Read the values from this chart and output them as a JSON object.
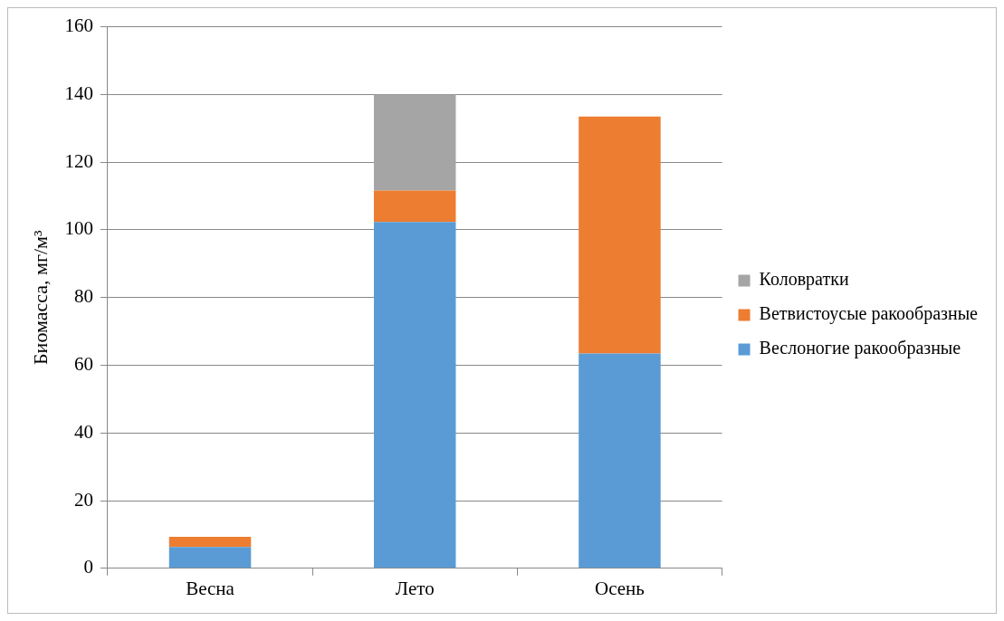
{
  "chart_data": {
    "type": "bar",
    "stacked": true,
    "ylabel": "Биомасса, мг/м³",
    "categories": [
      "Весна",
      "Лето",
      "Осень"
    ],
    "series": [
      {
        "name": "Веслоногие ракообразные",
        "color": "#5b9bd5",
        "values": [
          6.3,
          102.3,
          63.5
        ]
      },
      {
        "name": "Ветвистоусые ракообразные",
        "color": "#ed7d31",
        "values": [
          3.0,
          9.3,
          70.0
        ]
      },
      {
        "name": "Коловратки",
        "color": "#a5a5a5",
        "values": [
          0,
          28.4,
          0
        ]
      }
    ],
    "ylim": [
      0,
      160
    ],
    "yticks": [
      0,
      20,
      40,
      60,
      80,
      100,
      120,
      140,
      160
    ],
    "grid": "y",
    "legend": "right"
  }
}
